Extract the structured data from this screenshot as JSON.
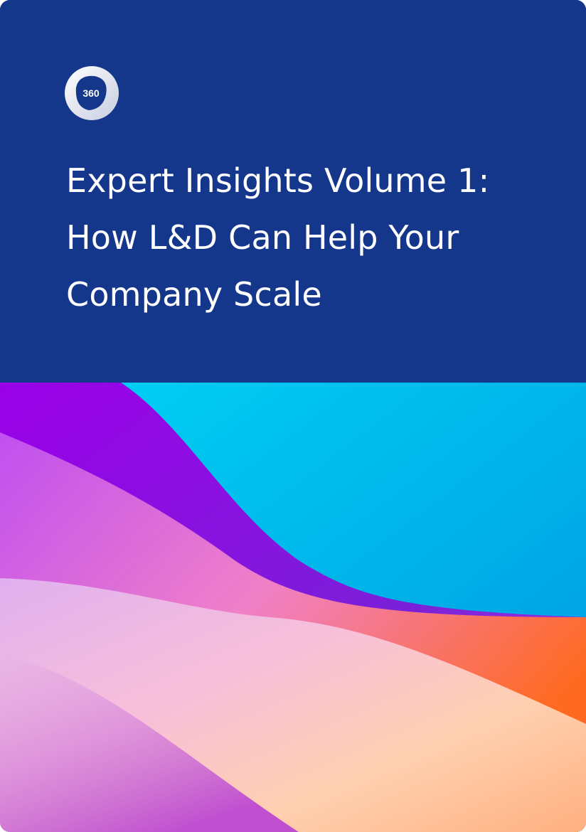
{
  "logo": {
    "text": "360",
    "icon": "circle-360-logo"
  },
  "title_lines": [
    "Expert Insights Volume 1:",
    "How L&D Can Help Your",
    "Company Scale"
  ],
  "colors": {
    "header_bg": "#14378c",
    "cyan": "#00c8f0",
    "purple": "#8a10e0",
    "pink": "#f2a0d0",
    "orange": "#ff7a30"
  }
}
